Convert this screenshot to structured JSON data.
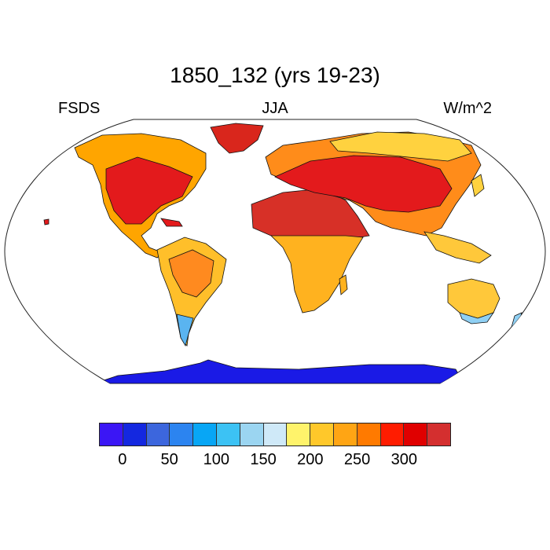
{
  "title": "1850_132 (yrs 19-23)",
  "left_label": "FSDS",
  "center_label": "JJA",
  "right_label": "W/m^2",
  "colors": {
    "ocean": "#ffffff",
    "outline": "#111111",
    "continents": {
      "north_america": "#ffa500",
      "north_america_core": "#e31a1c",
      "greenland": "#d9261c",
      "south_america": "#ffbf2a",
      "south_america_core": "#ff8a1f",
      "patagonia": "#5ab4f0",
      "africa_north": "#d73027",
      "africa_south": "#ffb21f",
      "eurasia": "#ff8c1a",
      "eurasia_core": "#e31a1c",
      "siberia": "#ffd23f",
      "south_asia": "#ffc83a",
      "australia": "#ffc83a",
      "australia_south": "#8fd0f4",
      "antarctica": "#1a1ae6"
    }
  },
  "colorbar": {
    "colors": [
      "#3b16f5",
      "#1428e0",
      "#3c66dd",
      "#2c84f0",
      "#08a6f5",
      "#3cc2f4",
      "#9bd5f1",
      "#cfe9f8",
      "#fff36b",
      "#ffc82a",
      "#ffa514",
      "#ff7a00",
      "#ff1c00",
      "#e00000",
      "#d42f2f"
    ],
    "tick_labels": [
      "0",
      "50",
      "100",
      "150",
      "200",
      "250",
      "300"
    ]
  }
}
